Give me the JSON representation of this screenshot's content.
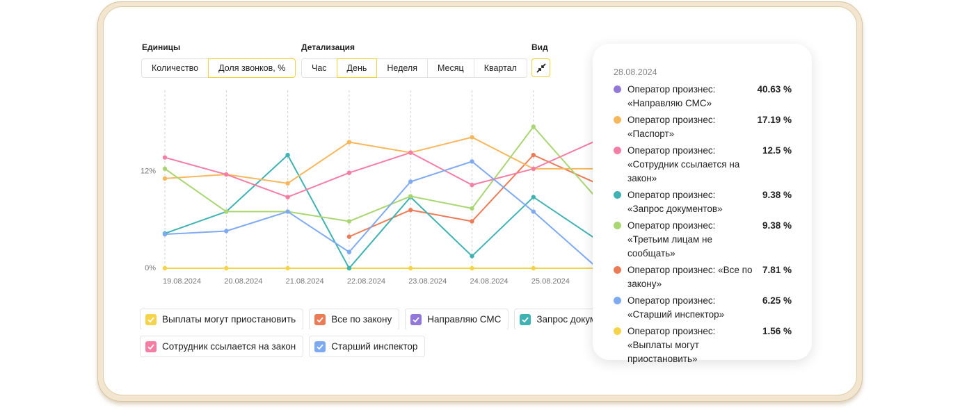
{
  "controls": {
    "units": {
      "label": "Единицы",
      "options": [
        "Количество",
        "Доля звонков, %"
      ],
      "active": 1
    },
    "detail": {
      "label": "Детализация",
      "options": [
        "Час",
        "День",
        "Неделя",
        "Месяц",
        "Квартал"
      ],
      "active": 1
    },
    "view": {
      "label": "Вид"
    }
  },
  "chart_data": {
    "type": "line",
    "categories": [
      "19.08.2024",
      "20.08.2024",
      "21.08.2024",
      "22.08.2024",
      "23.08.2024",
      "24.08.2024",
      "25.08.2024",
      null
    ],
    "ylim": [
      0,
      22
    ],
    "yticks": [
      {
        "value": 0,
        "label": "0%"
      },
      {
        "value": 12,
        "label": "12%"
      }
    ],
    "series": [
      {
        "name": "Выплаты могут приостановить",
        "color": "#f5d34a",
        "values": [
          0,
          0,
          0,
          0,
          0,
          0,
          0,
          0
        ]
      },
      {
        "name": "Все по закону",
        "color": "#ec7c57",
        "values": [
          null,
          null,
          null,
          3.9,
          7.2,
          5.8,
          14.0,
          10.6
        ]
      },
      {
        "name": "Направляю СМС",
        "color": "#9278d8",
        "values": [
          null,
          null,
          null,
          null,
          null,
          null,
          null,
          null
        ]
      },
      {
        "name": "Запрос документов",
        "color": "#3fb2b3",
        "values": [
          4.3,
          7.0,
          14.0,
          0,
          8.8,
          1.5,
          8.8,
          3.7
        ]
      },
      {
        "name": "Паспорт",
        "color": "#f7b75c",
        "values": [
          11.1,
          11.6,
          10.5,
          15.6,
          14.3,
          16.2,
          12.3,
          12.3
        ]
      },
      {
        "name": "Третьим лицам не сообщать",
        "color": "#a9d673",
        "values": [
          12.3,
          7.0,
          7.0,
          5.8,
          8.9,
          7.4,
          17.5,
          8.9
        ]
      },
      {
        "name": "Сотрудник ссылается на закон",
        "color": "#f47ea4",
        "values": [
          13.7,
          11.6,
          8.8,
          11.8,
          14.3,
          10.3,
          12.3,
          15.7
        ]
      },
      {
        "name": "Старший инспектор",
        "color": "#7eaaf1",
        "values": [
          4.2,
          4.6,
          7.0,
          2.0,
          10.7,
          13.2,
          7.0,
          0.3
        ]
      }
    ]
  },
  "tooltip": {
    "date": "28.08.2024",
    "items": [
      {
        "label": "Оператор произнес: «Направляю СМС»",
        "value": "40.63 %",
        "color": "#9278d8"
      },
      {
        "label": "Оператор произнес: «Паспорт»",
        "value": "17.19 %",
        "color": "#f7b75c"
      },
      {
        "label": "Оператор произнес: «Сотрудник ссылается на закон»",
        "value": "12.5 %",
        "color": "#f47ea4"
      },
      {
        "label": "Оператор произнес: «Запрос документов»",
        "value": "9.38 %",
        "color": "#3fb2b3"
      },
      {
        "label": "Оператор произнес: «Третьим лицам не сообщать»",
        "value": "9.38 %",
        "color": "#a9d673"
      },
      {
        "label": "Оператор произнес: «Все по закону»",
        "value": "7.81 %",
        "color": "#ec7c57"
      },
      {
        "label": "Оператор произнес: «Старший инспектор»",
        "value": "6.25 %",
        "color": "#7eaaf1"
      },
      {
        "label": "Оператор произнес: «Выплаты могут приостановить»",
        "value": "1.56 %",
        "color": "#f5d34a"
      }
    ]
  }
}
